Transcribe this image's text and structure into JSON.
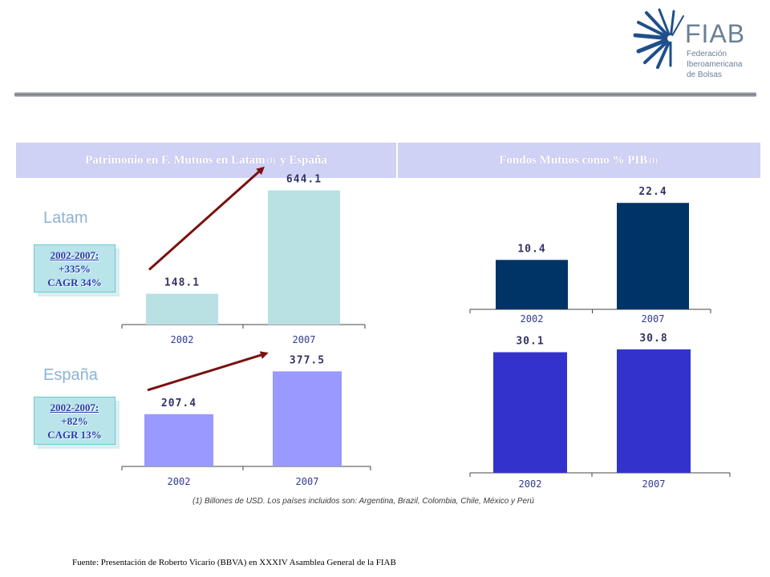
{
  "logo": {
    "name": "FIAB",
    "subtitle_lines": [
      "Federación",
      "Iberoamericana",
      "de Bolsas"
    ]
  },
  "headers": {
    "left": {
      "text": "Patrimonio en F. Mutuos en Latam",
      "sup": "(1)",
      "text_after": "y España"
    },
    "right": {
      "text": "Fondos Mutuos como % PIB",
      "sup": "(1)"
    }
  },
  "regions": {
    "latam": "Latam",
    "espana": "España"
  },
  "cagr_boxes": {
    "latam": {
      "period": "2002-2007:",
      "growth": "+335%",
      "cagr": "CAGR 34%"
    },
    "espana": {
      "period": "2002-2007:",
      "growth": "+82%",
      "cagr": "CAGR 13%"
    }
  },
  "colors": {
    "latam_bar": "#b9e0e3",
    "espana_bar": "#9999ff",
    "pib_latam_bar": "#003366",
    "pib_espana_bar": "#3333cc",
    "arrow": "#7a1010",
    "value_label": "#333366"
  },
  "chart_data": [
    {
      "type": "bar",
      "categories": [
        "2002",
        "2007"
      ],
      "values": [
        148.1,
        644.1
      ],
      "ylim": [
        0,
        700
      ],
      "annotation": "arrow"
    },
    {
      "type": "bar",
      "categories": [
        "2002",
        "2007"
      ],
      "values": [
        207.4,
        377.5
      ],
      "ylim": [
        0,
        420
      ],
      "annotation": "arrow"
    },
    {
      "type": "bar",
      "categories": [
        "2002",
        "2007"
      ],
      "values": [
        10.4,
        22.4
      ],
      "ylim": [
        0,
        28
      ]
    },
    {
      "type": "bar",
      "categories": [
        "2002",
        "2007"
      ],
      "values": [
        30.1,
        30.8
      ],
      "ylim": [
        0,
        33
      ]
    }
  ],
  "footnote": "(1) Billones de USD. Los países incluidos son: Argentina, Brazil, Colombia, Chile, México y Perú",
  "source": "Fuente: Presentación de Roberto Vicario (BBVA) en XXXIV Asamblea General de la FIAB"
}
